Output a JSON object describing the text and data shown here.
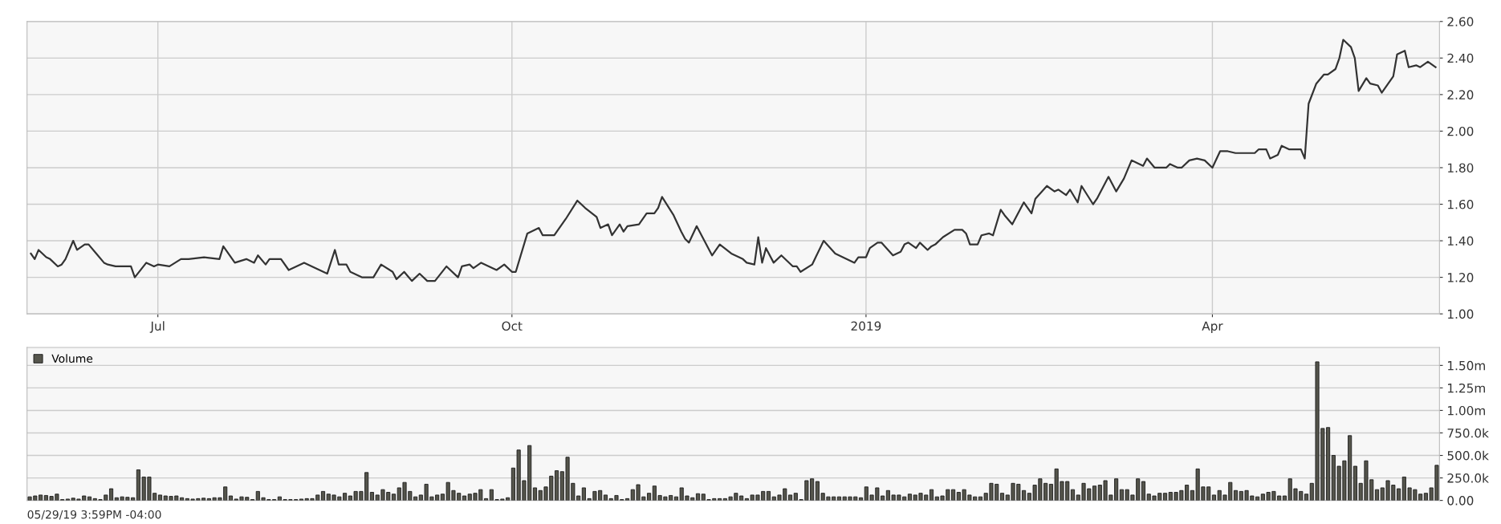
{
  "chart_data": [
    {
      "type": "line",
      "x": [
        "2018-05-29",
        "2018-05-30",
        "2018-05-31",
        "2018-06-02",
        "2018-06-03",
        "2018-06-05",
        "2018-06-06",
        "2018-06-07",
        "2018-06-09",
        "2018-06-10",
        "2018-06-12",
        "2018-06-13",
        "2018-06-15",
        "2018-06-17",
        "2018-06-18",
        "2018-06-20",
        "2018-06-24",
        "2018-06-25",
        "2018-06-28",
        "2018-06-30",
        "2018-07-01",
        "2018-07-04",
        "2018-07-07",
        "2018-07-09",
        "2018-07-13",
        "2018-07-17",
        "2018-07-18",
        "2018-07-21",
        "2018-07-24",
        "2018-07-26",
        "2018-07-27",
        "2018-07-29",
        "2018-07-30",
        "2018-08-02",
        "2018-08-04",
        "2018-08-08",
        "2018-08-14",
        "2018-08-16",
        "2018-08-17",
        "2018-08-19",
        "2018-08-20",
        "2018-08-23",
        "2018-08-26",
        "2018-08-28",
        "2018-08-31",
        "2018-09-01",
        "2018-09-03",
        "2018-09-05",
        "2018-09-07",
        "2018-09-09",
        "2018-09-11",
        "2018-09-14",
        "2018-09-17",
        "2018-09-18",
        "2018-09-20",
        "2018-09-21",
        "2018-09-23",
        "2018-09-27",
        "2018-09-29",
        "2018-10-01",
        "2018-10-02",
        "2018-10-05",
        "2018-10-08",
        "2018-10-09",
        "2018-10-12",
        "2018-10-15",
        "2018-10-18",
        "2018-10-20",
        "2018-10-23",
        "2018-10-24",
        "2018-10-26",
        "2018-10-27",
        "2018-10-29",
        "2018-10-30",
        "2018-10-31",
        "2018-11-03",
        "2018-11-05",
        "2018-11-07",
        "2018-11-08",
        "2018-11-09",
        "2018-11-12",
        "2018-11-14",
        "2018-11-15",
        "2018-11-16",
        "2018-11-18",
        "2018-11-22",
        "2018-11-24",
        "2018-11-27",
        "2018-11-30",
        "2018-12-01",
        "2018-12-03",
        "2018-12-04",
        "2018-12-05",
        "2018-12-06",
        "2018-12-08",
        "2018-12-10",
        "2018-12-13",
        "2018-12-14",
        "2018-12-15",
        "2018-12-18",
        "2018-12-21",
        "2018-12-24",
        "2018-12-29",
        "2018-12-30",
        "2019-01-01",
        "2019-01-02",
        "2019-01-04",
        "2019-01-05",
        "2019-01-08",
        "2019-01-10",
        "2019-01-11",
        "2019-01-12",
        "2019-01-14",
        "2019-01-15",
        "2019-01-17",
        "2019-01-18",
        "2019-01-19",
        "2019-01-21",
        "2019-01-24",
        "2019-01-26",
        "2019-01-27",
        "2019-01-28",
        "2019-01-30",
        "2019-01-31",
        "2019-02-02",
        "2019-02-03",
        "2019-02-05",
        "2019-02-06",
        "2019-02-08",
        "2019-02-11",
        "2019-02-13",
        "2019-02-14",
        "2019-02-17",
        "2019-02-19",
        "2019-02-20",
        "2019-02-22",
        "2019-02-23",
        "2019-02-25",
        "2019-02-26",
        "2019-03-01",
        "2019-03-02",
        "2019-03-05",
        "2019-03-07",
        "2019-03-09",
        "2019-03-11",
        "2019-03-14",
        "2019-03-15",
        "2019-03-17",
        "2019-03-20",
        "2019-03-21",
        "2019-03-23",
        "2019-03-24",
        "2019-03-26",
        "2019-03-28",
        "2019-03-30",
        "2019-04-01",
        "2019-04-03",
        "2019-04-05",
        "2019-04-07",
        "2019-04-12",
        "2019-04-13",
        "2019-04-15",
        "2019-04-16",
        "2019-04-18",
        "2019-04-19",
        "2019-04-21",
        "2019-04-24",
        "2019-04-25",
        "2019-04-26",
        "2019-04-28",
        "2019-04-30",
        "2019-05-01",
        "2019-05-03",
        "2019-05-04",
        "2019-05-05",
        "2019-05-07",
        "2019-05-08",
        "2019-05-09",
        "2019-05-11",
        "2019-05-12",
        "2019-05-14",
        "2019-05-15",
        "2019-05-18",
        "2019-05-19",
        "2019-05-21",
        "2019-05-22",
        "2019-05-24",
        "2019-05-25",
        "2019-05-27",
        "2019-05-29"
      ],
      "series": [
        {
          "color": "#333333",
          "values": [
            1.33,
            1.3,
            1.35,
            1.31,
            1.3,
            1.26,
            1.27,
            1.3,
            1.4,
            1.35,
            1.38,
            1.38,
            1.33,
            1.28,
            1.27,
            1.26,
            1.26,
            1.2,
            1.28,
            1.26,
            1.27,
            1.26,
            1.3,
            1.3,
            1.31,
            1.3,
            1.37,
            1.28,
            1.3,
            1.28,
            1.32,
            1.27,
            1.3,
            1.3,
            1.24,
            1.28,
            1.22,
            1.35,
            1.27,
            1.27,
            1.23,
            1.2,
            1.2,
            1.27,
            1.23,
            1.19,
            1.23,
            1.18,
            1.22,
            1.18,
            1.18,
            1.26,
            1.2,
            1.26,
            1.27,
            1.25,
            1.28,
            1.24,
            1.27,
            1.23,
            1.23,
            1.44,
            1.47,
            1.43,
            1.43,
            1.52,
            1.62,
            1.58,
            1.53,
            1.47,
            1.49,
            1.43,
            1.49,
            1.45,
            1.48,
            1.49,
            1.55,
            1.55,
            1.58,
            1.64,
            1.54,
            1.45,
            1.41,
            1.39,
            1.48,
            1.32,
            1.38,
            1.33,
            1.3,
            1.28,
            1.27,
            1.42,
            1.28,
            1.36,
            1.28,
            1.32,
            1.26,
            1.26,
            1.23,
            1.27,
            1.4,
            1.33,
            1.28,
            1.31,
            1.31,
            1.36,
            1.39,
            1.39,
            1.32,
            1.34,
            1.38,
            1.39,
            1.36,
            1.39,
            1.35,
            1.37,
            1.38,
            1.42,
            1.46,
            1.46,
            1.44,
            1.38,
            1.38,
            1.43,
            1.44,
            1.43,
            1.57,
            1.54,
            1.49,
            1.61,
            1.55,
            1.63,
            1.7,
            1.67,
            1.68,
            1.65,
            1.68,
            1.61,
            1.7,
            1.6,
            1.63,
            1.75,
            1.67,
            1.74,
            1.84,
            1.81,
            1.85,
            1.8,
            1.8,
            1.82,
            1.8,
            1.8,
            1.84,
            1.85,
            1.84,
            1.8,
            1.89,
            1.89,
            1.88,
            1.88,
            1.9,
            1.9,
            1.85,
            1.87,
            1.92,
            1.9,
            1.9,
            1.85,
            2.15,
            2.26,
            2.31,
            2.31,
            2.34,
            2.4,
            2.5,
            2.46,
            2.4,
            2.22,
            2.29,
            2.26,
            2.25,
            2.21,
            2.3,
            2.42,
            2.44,
            2.35,
            2.36,
            2.35,
            2.38,
            2.35
          ]
        }
      ],
      "xlim": [
        "2018-05-28",
        "2019-05-30"
      ],
      "xticks": [
        {
          "value": "2018-07-01",
          "label": "Jul"
        },
        {
          "value": "2018-10-01",
          "label": "Oct"
        },
        {
          "value": "2019-01-01",
          "label": "2019"
        },
        {
          "value": "2019-04-01",
          "label": "Apr"
        }
      ],
      "ylim": [
        1.0,
        2.6
      ],
      "yticks": [
        {
          "value": 1.0,
          "label": "1.00"
        },
        {
          "value": 1.2,
          "label": "1.20"
        },
        {
          "value": 1.4,
          "label": "1.40"
        },
        {
          "value": 1.6,
          "label": "1.60"
        },
        {
          "value": 1.8,
          "label": "1.80"
        },
        {
          "value": 2.0,
          "label": "2.00"
        },
        {
          "value": 2.2,
          "label": "2.20"
        },
        {
          "value": 2.4,
          "label": "2.40"
        },
        {
          "value": 2.6,
          "label": "2.60"
        }
      ],
      "grid": true
    },
    {
      "type": "bar",
      "categories": [
        null,
        null,
        null,
        null,
        null,
        null,
        null,
        null,
        null,
        null,
        null,
        null,
        null,
        null,
        null,
        null,
        null,
        null,
        null,
        null,
        null,
        null,
        null,
        null,
        null,
        null,
        null,
        null,
        null,
        null,
        null,
        null,
        null,
        null,
        null,
        null,
        null,
        null,
        null,
        null,
        null,
        null,
        null,
        null,
        null,
        null,
        null,
        null,
        null,
        null,
        null,
        null,
        null,
        null,
        null,
        null,
        null,
        null,
        null,
        null,
        null,
        null,
        null,
        null,
        null,
        null,
        null,
        null,
        null,
        null,
        null,
        null,
        null,
        null,
        null,
        null,
        null,
        null,
        null,
        null,
        null,
        null,
        null,
        null,
        null,
        null,
        null,
        null,
        null,
        null,
        null,
        null,
        null,
        null,
        null,
        null,
        null,
        null,
        null,
        null,
        null,
        null,
        null,
        null,
        null,
        null,
        null,
        null,
        null,
        null,
        null,
        null,
        null,
        null,
        null,
        null,
        null,
        null,
        null,
        null,
        null,
        null,
        null,
        null,
        null,
        null,
        null,
        null,
        null,
        null,
        null,
        null,
        null,
        null,
        null,
        null,
        null,
        null,
        null,
        null,
        null,
        null,
        null,
        null,
        null,
        null,
        null,
        null,
        null,
        null,
        null,
        null,
        null,
        null,
        null,
        null,
        null,
        null,
        null,
        null,
        null,
        null,
        null,
        null,
        null,
        null,
        null,
        null,
        null,
        null,
        null,
        null,
        null,
        null,
        null,
        null,
        null,
        null,
        null,
        null,
        null,
        null,
        null,
        null,
        null,
        null,
        null,
        null,
        null,
        null,
        null,
        null,
        null,
        null,
        null,
        null,
        null,
        null,
        null,
        null,
        null,
        null,
        null,
        null,
        null,
        null,
        null,
        null,
        null,
        null,
        null,
        null,
        null,
        null,
        null,
        null,
        null,
        null,
        null,
        null,
        null,
        null,
        null,
        null,
        null,
        null,
        null,
        null,
        null,
        null,
        null,
        null,
        null,
        null,
        null,
        null,
        null,
        null,
        null,
        null,
        null,
        null,
        null,
        null,
        null,
        null,
        null,
        null,
        null,
        null,
        null,
        null,
        null,
        null,
        null,
        null,
        null,
        null,
        null,
        null
      ],
      "series": [
        {
          "name": "Volume",
          "color": "#55554c",
          "values": [
            40000,
            50000,
            60000,
            55000,
            45000,
            70000,
            10000,
            15000,
            25000,
            15000,
            50000,
            40000,
            20000,
            10000,
            60000,
            130000,
            30000,
            40000,
            35000,
            30000,
            340000,
            260000,
            260000,
            80000,
            60000,
            50000,
            45000,
            50000,
            30000,
            20000,
            15000,
            20000,
            25000,
            20000,
            30000,
            30000,
            150000,
            50000,
            15000,
            40000,
            35000,
            10000,
            100000,
            30000,
            10000,
            10000,
            40000,
            10000,
            10000,
            10000,
            15000,
            20000,
            20000,
            60000,
            100000,
            70000,
            60000,
            40000,
            80000,
            50000,
            100000,
            100000,
            310000,
            90000,
            60000,
            120000,
            90000,
            70000,
            140000,
            200000,
            100000,
            40000,
            60000,
            180000,
            40000,
            60000,
            70000,
            200000,
            110000,
            80000,
            50000,
            70000,
            80000,
            120000,
            20000,
            120000,
            10000,
            15000,
            30000,
            360000,
            560000,
            220000,
            610000,
            140000,
            110000,
            150000,
            270000,
            330000,
            320000,
            480000,
            190000,
            50000,
            140000,
            20000,
            100000,
            110000,
            60000,
            20000,
            55000,
            10000,
            20000,
            120000,
            175000,
            40000,
            80000,
            160000,
            55000,
            40000,
            55000,
            40000,
            140000,
            50000,
            30000,
            75000,
            70000,
            10000,
            20000,
            20000,
            20000,
            40000,
            80000,
            50000,
            20000,
            60000,
            60000,
            100000,
            100000,
            40000,
            60000,
            130000,
            60000,
            80000,
            10000,
            220000,
            240000,
            210000,
            80000,
            40000,
            40000,
            40000,
            40000,
            40000,
            40000,
            30000,
            150000,
            60000,
            140000,
            50000,
            110000,
            60000,
            60000,
            40000,
            70000,
            60000,
            80000,
            60000,
            120000,
            40000,
            50000,
            120000,
            120000,
            90000,
            120000,
            60000,
            40000,
            40000,
            80000,
            190000,
            180000,
            80000,
            60000,
            190000,
            180000,
            110000,
            80000,
            170000,
            240000,
            190000,
            180000,
            350000,
            210000,
            210000,
            120000,
            60000,
            190000,
            130000,
            160000,
            170000,
            220000,
            60000,
            240000,
            120000,
            120000,
            60000,
            240000,
            210000,
            70000,
            50000,
            80000,
            80000,
            90000,
            90000,
            110000,
            170000,
            110000,
            350000,
            150000,
            150000,
            60000,
            110000,
            60000,
            200000,
            110000,
            100000,
            110000,
            50000,
            40000,
            70000,
            90000,
            100000,
            50000,
            50000,
            240000,
            130000,
            100000,
            70000,
            190000,
            1540000,
            800000,
            810000,
            500000,
            380000,
            440000,
            720000,
            380000,
            190000,
            440000,
            230000,
            120000,
            140000,
            220000,
            170000,
            130000,
            260000,
            140000,
            120000,
            70000,
            80000,
            140000,
            390000
          ]
        }
      ],
      "ylim": [
        0,
        1700000
      ],
      "yticks": [
        {
          "value": 0,
          "label": "0.00"
        },
        {
          "value": 250000,
          "label": "250.0k"
        },
        {
          "value": 500000,
          "label": "500.0k"
        },
        {
          "value": 750000,
          "label": "750.0k"
        },
        {
          "value": 1000000,
          "label": "1.00m"
        },
        {
          "value": 1250000,
          "label": "1.25m"
        },
        {
          "value": 1500000,
          "label": "1.50m"
        }
      ],
      "grid": "y",
      "legend": "top left",
      "annotations": [
        "05/29/19 3:59PM -04:00"
      ]
    }
  ]
}
